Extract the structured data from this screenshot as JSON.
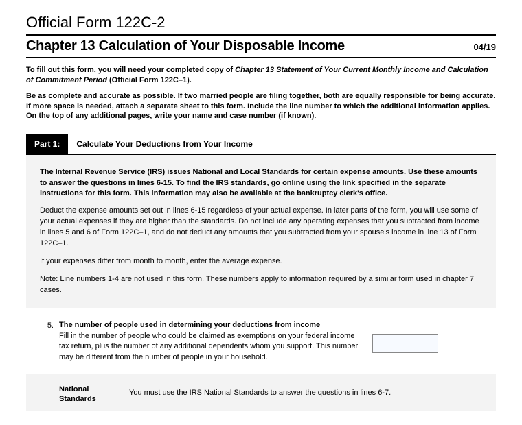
{
  "header": {
    "form_number": "Official Form 122C-2",
    "title": "Chapter 13 Calculation of Your Disposable Income",
    "date": "04/19"
  },
  "intro": {
    "para1_prefix": "To fill out this form, you will need your completed copy of ",
    "para1_italic": "Chapter 13 Statement of Your Current Monthly Income and Calculation of Commitment Period",
    "para1_suffix": " (Official Form 122C–1).",
    "para2": "Be as complete and accurate as possible. If two married people are filing together, both are equally responsible for being accurate. If more space is needed, attach a separate sheet to this form. Include the line number to which the additional information applies. On the top of any additional pages, write your name and case number (if known)."
  },
  "part1": {
    "label": "Part 1:",
    "title": "Calculate Your Deductions from Your Income"
  },
  "instructions": {
    "bold": "The Internal Revenue Service (IRS) issues National and Local Standards for certain expense amounts. Use these amounts to answer the questions in lines 6-15. To find the IRS standards, go online using the link specified in the separate instructions for this form. This information may also be available at the bankruptcy clerk's office.",
    "body1": "Deduct the expense amounts set out in lines 6-15 regardless of your actual expense. In later parts of the form, you will use some of your actual expenses if they are higher than the standards. Do not include any operating expenses that you subtracted from income in lines 5 and 6 of Form 122C–1, and do not deduct any amounts that you subtracted from your spouse's income in line 13 of Form 122C–1.",
    "body2": "If your expenses differ from month to month, enter the average expense.",
    "body3": "Note: Line numbers 1-4 are not used in this form. These numbers apply to information required by a similar form used in chapter 7 cases."
  },
  "question5": {
    "number": "5.",
    "title": "The number of people used in determining your deductions from income",
    "body": "Fill in the number of people who could be claimed as exemptions on your federal income tax return, plus the number of any additional dependents whom you support. This number may be different from the number of people in your household.",
    "input_value": ""
  },
  "national_standards": {
    "label": "National Standards",
    "text": "You must use the IRS National Standards to answer the questions in lines 6-7."
  },
  "colors": {
    "text": "#000000",
    "background": "#ffffff",
    "gray_box": "#f3f3f3",
    "input_bg": "#f7faff",
    "input_border": "#888888"
  }
}
